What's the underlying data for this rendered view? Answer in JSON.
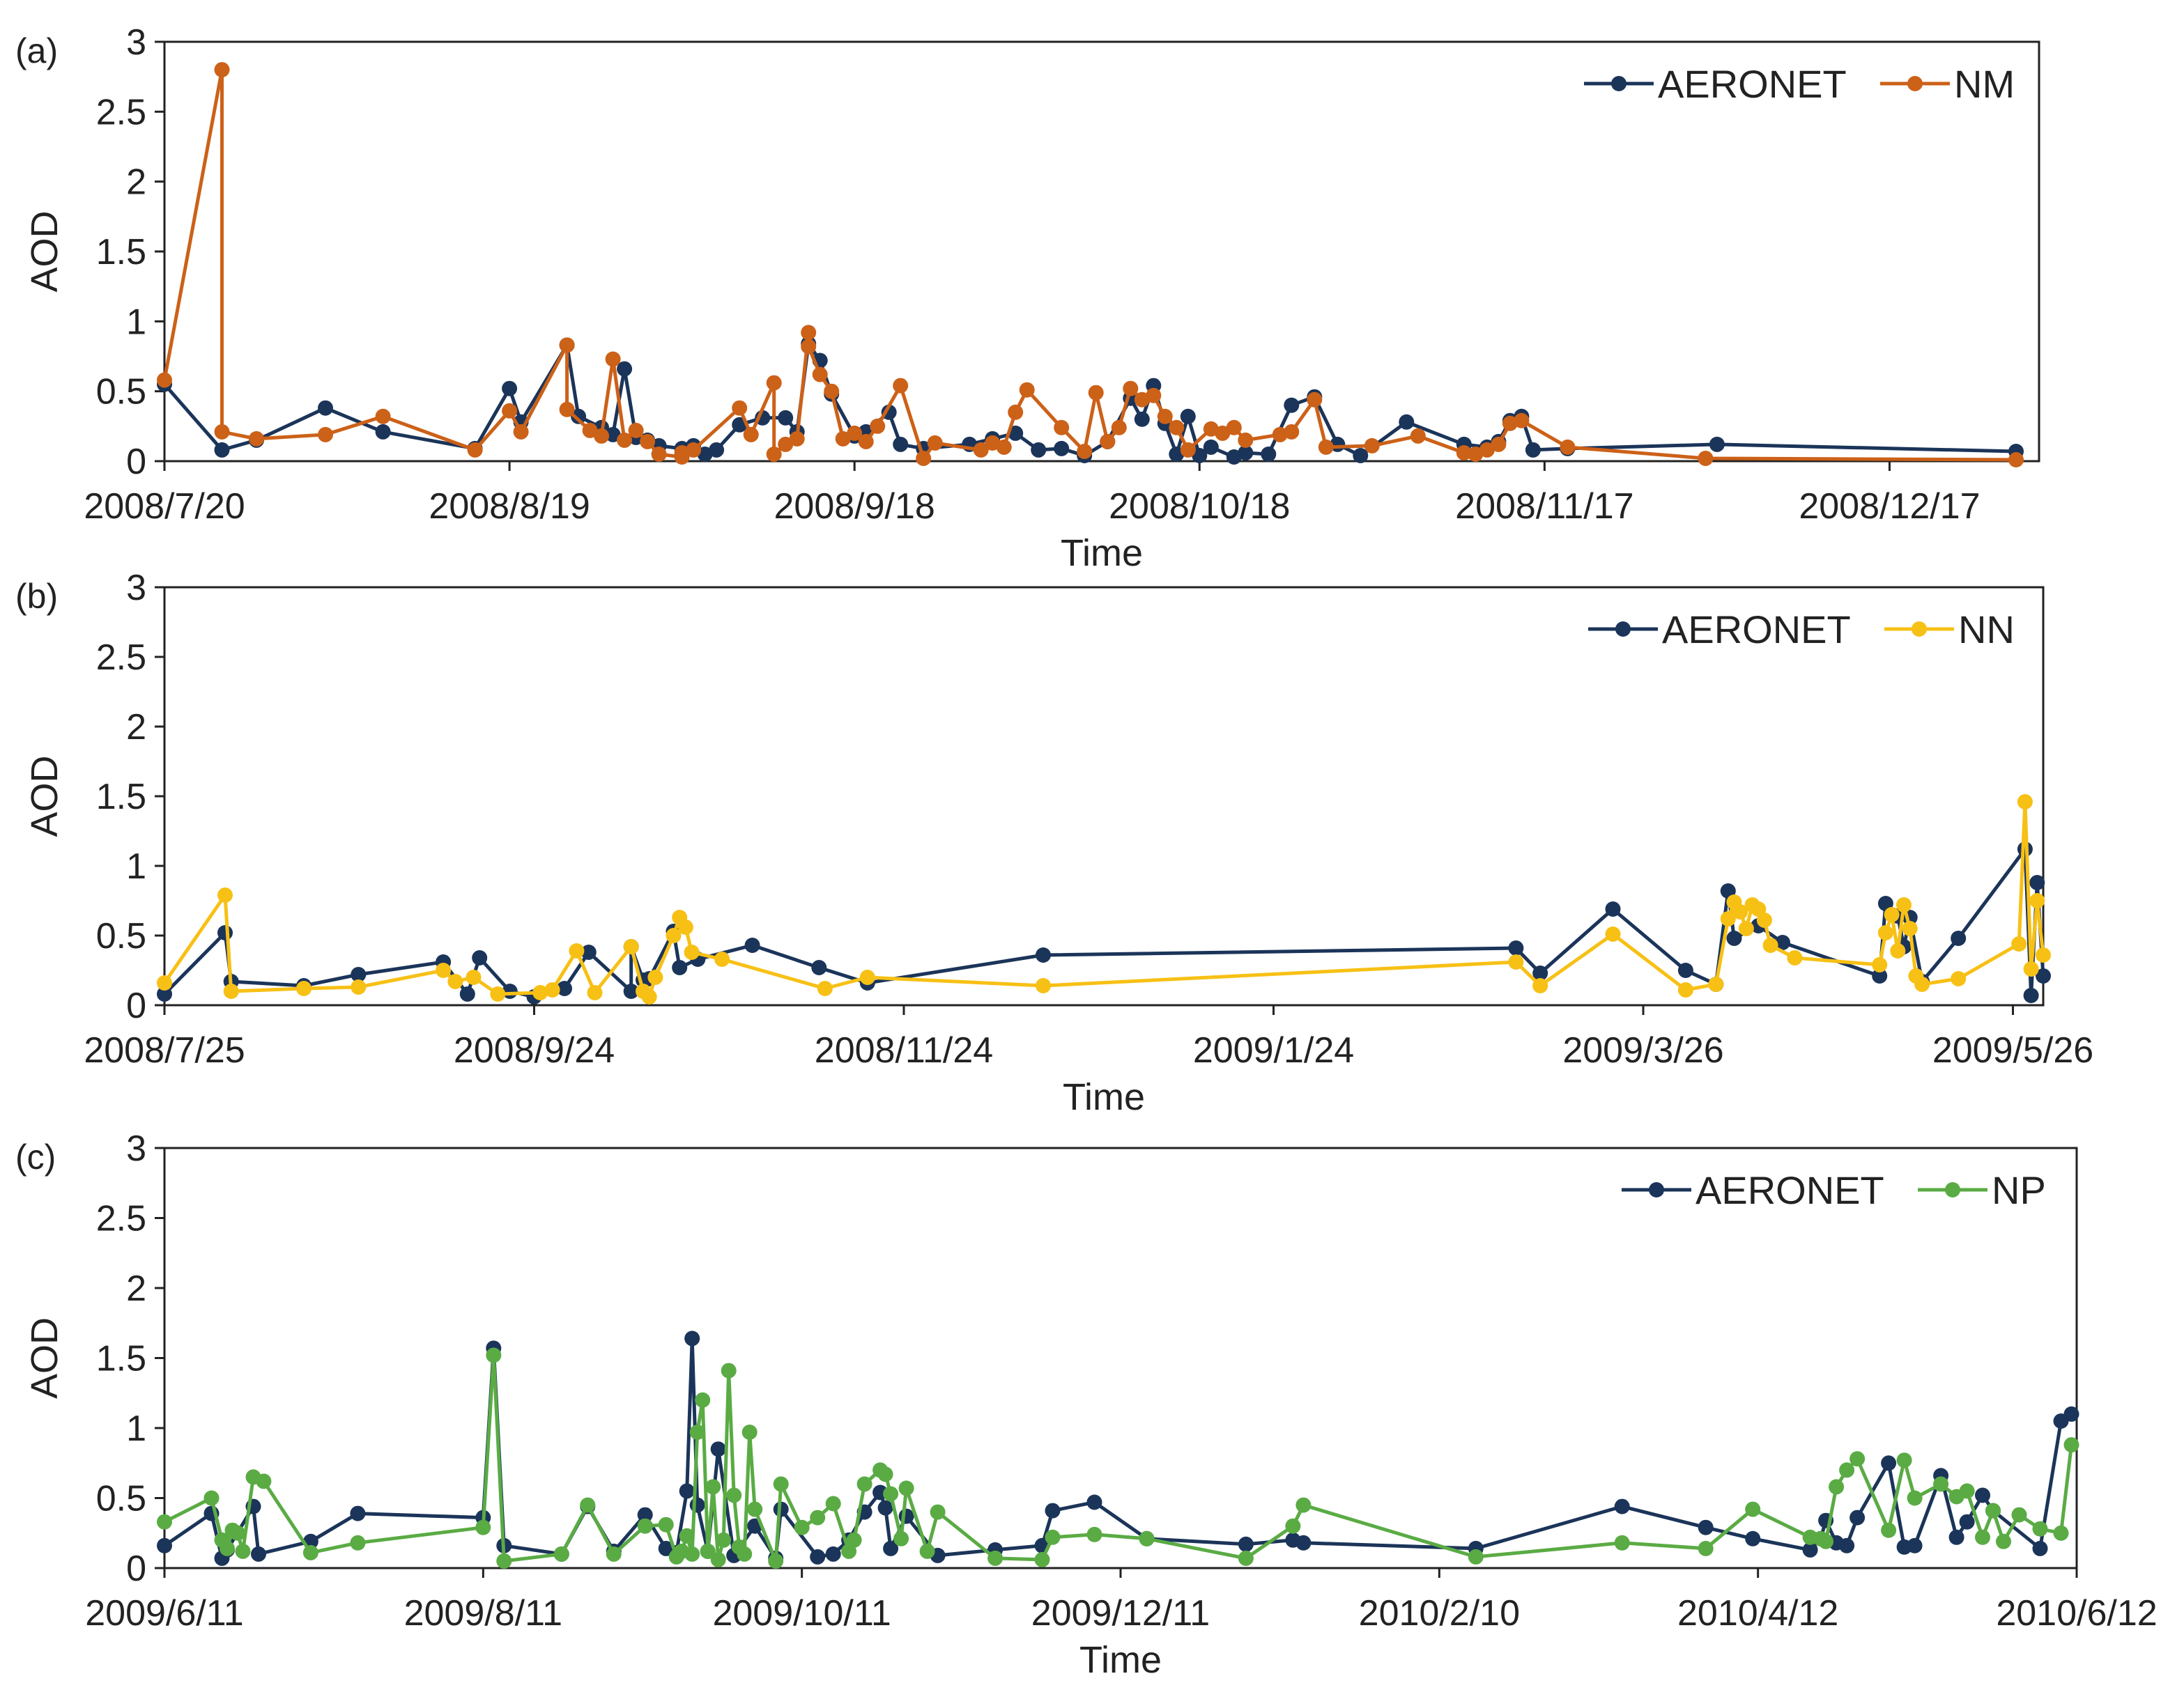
{
  "colors": {
    "aeronet": "#1b3459",
    "nm": "#cc6118",
    "nn": "#f7c015",
    "np": "#5aab44",
    "axis": "#222222"
  },
  "chart_data": [
    {
      "type": "line",
      "panel_label": "(a)",
      "xlabel": "Time",
      "ylabel": "AOD",
      "ylim": [
        0,
        3
      ],
      "yticks": [
        "0",
        "0.5",
        "1",
        "1.5",
        "2",
        "2.5",
        "3"
      ],
      "xlim_days": [
        0,
        163
      ],
      "xtick_labels": [
        "2008/7/20",
        "2008/8/19",
        "2008/9/18",
        "2008/10/18",
        "2008/11/17",
        "2008/12/17"
      ],
      "xtick_days": [
        0,
        30,
        60,
        90,
        120,
        150
      ],
      "legend_position": "top-right",
      "series": [
        {
          "name": "AERONET",
          "color_key": "aeronet",
          "x_days": [
            0,
            5,
            8,
            14,
            19,
            27,
            30,
            31,
            35,
            36,
            38,
            39,
            40,
            41,
            42,
            43,
            45,
            46,
            47,
            48,
            50,
            52,
            54,
            55,
            56,
            57,
            58,
            60,
            61,
            63,
            64,
            66,
            70,
            72,
            74,
            76,
            78,
            80,
            82,
            84,
            85,
            86,
            87,
            88,
            89,
            90,
            91,
            93,
            94,
            96,
            98,
            100,
            102,
            104,
            108,
            113,
            115,
            116,
            117,
            118,
            119,
            122,
            135,
            161
          ],
          "values": [
            0.55,
            0.08,
            0.15,
            0.38,
            0.21,
            0.09,
            0.52,
            0.28,
            0.83,
            0.32,
            0.24,
            0.19,
            0.66,
            0.17,
            0.15,
            0.11,
            0.09,
            0.11,
            0.05,
            0.08,
            0.26,
            0.31,
            0.31,
            0.21,
            0.84,
            0.72,
            0.48,
            0.18,
            0.21,
            0.35,
            0.12,
            0.09,
            0.12,
            0.16,
            0.2,
            0.08,
            0.09,
            0.04,
            0.14,
            0.45,
            0.3,
            0.54,
            0.27,
            0.05,
            0.32,
            0.04,
            0.1,
            0.03,
            0.06,
            0.05,
            0.4,
            0.46,
            0.12,
            0.04,
            0.28,
            0.12,
            0.1,
            0.14,
            0.29,
            0.32,
            0.08,
            0.09,
            0.12,
            0.07
          ]
        },
        {
          "name": "NM",
          "color_key": "nm",
          "x_days": [
            0,
            5,
            5,
            8,
            14,
            19,
            27,
            30,
            31,
            35,
            35,
            37,
            38,
            39,
            40,
            41,
            42,
            43,
            45,
            45,
            46,
            50,
            51,
            53,
            53,
            54,
            55,
            56,
            56,
            57,
            58,
            59,
            60,
            61,
            62,
            64,
            66,
            67,
            71,
            72,
            73,
            74,
            75,
            78,
            80,
            81,
            82,
            83,
            84,
            85,
            86,
            87,
            88,
            89,
            91,
            92,
            93,
            94,
            97,
            98,
            100,
            101,
            105,
            109,
            113,
            114,
            115,
            116,
            117,
            118,
            122,
            134,
            161
          ],
          "values": [
            0.58,
            2.8,
            0.21,
            0.16,
            0.19,
            0.32,
            0.08,
            0.36,
            0.21,
            0.83,
            0.37,
            0.22,
            0.18,
            0.73,
            0.15,
            0.22,
            0.14,
            0.05,
            0.03,
            0.06,
            0.08,
            0.38,
            0.19,
            0.56,
            0.05,
            0.12,
            0.16,
            0.92,
            0.82,
            0.62,
            0.5,
            0.16,
            0.2,
            0.14,
            0.25,
            0.54,
            0.02,
            0.13,
            0.08,
            0.13,
            0.1,
            0.35,
            0.51,
            0.24,
            0.07,
            0.49,
            0.14,
            0.24,
            0.52,
            0.44,
            0.47,
            0.32,
            0.24,
            0.08,
            0.23,
            0.2,
            0.24,
            0.15,
            0.19,
            0.21,
            0.44,
            0.1,
            0.11,
            0.18,
            0.06,
            0.05,
            0.08,
            0.12,
            0.27,
            0.29,
            0.1,
            0.02,
            0.01
          ]
        }
      ]
    },
    {
      "type": "line",
      "panel_label": "(b)",
      "xlabel": "Time",
      "ylabel": "AOD",
      "ylim": [
        0,
        3
      ],
      "yticks": [
        "0",
        "0.5",
        "1",
        "1.5",
        "2",
        "2.5",
        "3"
      ],
      "xlim_days": [
        0,
        310
      ],
      "xtick_labels": [
        "2008/7/25",
        "2008/9/24",
        "2008/11/24",
        "2009/1/24",
        "2009/3/26",
        "2009/5/26"
      ],
      "xtick_days": [
        0,
        61,
        122,
        183,
        244,
        305
      ],
      "legend_position": "top-right",
      "series": [
        {
          "name": "AERONET",
          "color_key": "aeronet",
          "x_days": [
            0,
            10,
            11,
            23,
            32,
            46,
            50,
            52,
            57,
            61,
            66,
            70,
            77,
            77,
            79,
            80,
            84,
            85,
            88,
            97,
            108,
            116,
            145,
            223,
            227,
            239,
            251,
            256,
            258,
            259,
            263,
            267,
            283,
            284,
            286,
            287,
            288,
            290,
            296,
            307,
            308,
            309,
            310
          ],
          "values": [
            0.08,
            0.52,
            0.17,
            0.14,
            0.22,
            0.31,
            0.08,
            0.34,
            0.1,
            0.06,
            0.12,
            0.38,
            0.1,
            0.42,
            0.18,
            0.19,
            0.53,
            0.27,
            0.33,
            0.43,
            0.27,
            0.16,
            0.36,
            0.41,
            0.23,
            0.69,
            0.25,
            0.15,
            0.82,
            0.48,
            0.57,
            0.45,
            0.21,
            0.73,
            0.64,
            0.42,
            0.63,
            0.17,
            0.48,
            1.12,
            0.07,
            0.88,
            0.21
          ]
        },
        {
          "name": "NN",
          "color_key": "nn",
          "x_days": [
            0,
            10,
            11,
            23,
            32,
            46,
            48,
            51,
            55,
            62,
            64,
            68,
            71,
            77,
            79,
            80,
            81,
            84,
            85,
            86,
            87,
            92,
            109,
            116,
            145,
            223,
            227,
            239,
            251,
            256,
            258,
            259,
            260,
            261,
            262,
            263,
            264,
            265,
            269,
            283,
            284,
            285,
            286,
            287,
            288,
            289,
            290,
            296,
            306,
            307,
            308,
            309,
            310
          ],
          "values": [
            0.16,
            0.79,
            0.1,
            0.12,
            0.13,
            0.25,
            0.17,
            0.2,
            0.08,
            0.09,
            0.11,
            0.39,
            0.09,
            0.42,
            0.1,
            0.06,
            0.2,
            0.5,
            0.63,
            0.56,
            0.38,
            0.33,
            0.12,
            0.2,
            0.14,
            0.31,
            0.14,
            0.51,
            0.11,
            0.15,
            0.62,
            0.74,
            0.67,
            0.55,
            0.72,
            0.69,
            0.61,
            0.43,
            0.34,
            0.29,
            0.52,
            0.65,
            0.39,
            0.72,
            0.55,
            0.21,
            0.15,
            0.19,
            0.44,
            1.46,
            0.26,
            0.75,
            0.36
          ]
        }
      ]
    },
    {
      "type": "line",
      "panel_label": "(c)",
      "xlabel": "Time",
      "ylabel": "AOD",
      "ylim": [
        0,
        3
      ],
      "yticks": [
        "0",
        "0.5",
        "1",
        "1.5",
        "2",
        "2.5",
        "3"
      ],
      "xlim_days": [
        0,
        366
      ],
      "xtick_labels": [
        "2009/6/11",
        "2009/8/11",
        "2009/10/11",
        "2009/12/11",
        "2010/2/10",
        "2010/4/12",
        "2010/6/12"
      ],
      "xtick_days": [
        0,
        61,
        122,
        183,
        244,
        305,
        366
      ],
      "legend_position": "top-right",
      "series": [
        {
          "name": "AERONET",
          "color_key": "aeronet",
          "x_days": [
            0,
            9,
            11,
            12,
            17,
            18,
            28,
            37,
            61,
            63,
            65,
            76,
            81,
            86,
            92,
            96,
            98,
            100,
            101,
            102,
            104,
            106,
            109,
            113,
            117,
            118,
            125,
            128,
            131,
            134,
            137,
            138,
            139,
            142,
            148,
            159,
            168,
            170,
            178,
            188,
            207,
            216,
            218,
            251,
            279,
            295,
            304,
            315,
            317,
            318,
            320,
            322,
            324,
            330,
            333,
            335,
            340,
            343,
            345,
            348,
            350,
            359,
            363,
            365
          ],
          "values": [
            0.16,
            0.39,
            0.07,
            0.13,
            0.44,
            0.1,
            0.19,
            0.39,
            0.36,
            1.57,
            0.16,
            0.1,
            0.44,
            0.12,
            0.38,
            0.14,
            0.11,
            0.55,
            1.64,
            0.45,
            0.12,
            0.85,
            0.09,
            0.3,
            0.07,
            0.42,
            0.08,
            0.1,
            0.2,
            0.4,
            0.54,
            0.43,
            0.14,
            0.37,
            0.09,
            0.13,
            0.16,
            0.41,
            0.47,
            0.21,
            0.17,
            0.2,
            0.18,
            0.14,
            0.44,
            0.29,
            0.21,
            0.13,
            0.21,
            0.34,
            0.18,
            0.16,
            0.36,
            0.75,
            0.15,
            0.16,
            0.66,
            0.22,
            0.33,
            0.52,
            0.41,
            0.14,
            1.05,
            1.1
          ]
        },
        {
          "name": "NP",
          "color_key": "np",
          "x_days": [
            0,
            9,
            11,
            12,
            13,
            14,
            15,
            17,
            19,
            28,
            37,
            61,
            63,
            65,
            76,
            81,
            86,
            92,
            96,
            98,
            99,
            100,
            101,
            102,
            103,
            104,
            105,
            106,
            107,
            108,
            109,
            110,
            111,
            112,
            113,
            117,
            118,
            122,
            125,
            128,
            131,
            132,
            134,
            137,
            138,
            139,
            141,
            142,
            146,
            148,
            159,
            168,
            170,
            178,
            188,
            207,
            216,
            218,
            251,
            279,
            295,
            304,
            315,
            317,
            318,
            320,
            322,
            324,
            330,
            333,
            335,
            340,
            343,
            345,
            348,
            350,
            352,
            355,
            359,
            363,
            365
          ],
          "values": [
            0.33,
            0.5,
            0.2,
            0.14,
            0.27,
            0.25,
            0.12,
            0.65,
            0.62,
            0.11,
            0.18,
            0.29,
            1.52,
            0.05,
            0.1,
            0.45,
            0.1,
            0.3,
            0.31,
            0.08,
            0.12,
            0.23,
            0.1,
            0.97,
            1.2,
            0.12,
            0.58,
            0.06,
            0.2,
            1.41,
            0.52,
            0.15,
            0.1,
            0.97,
            0.42,
            0.05,
            0.6,
            0.29,
            0.36,
            0.46,
            0.12,
            0.2,
            0.6,
            0.7,
            0.67,
            0.53,
            0.21,
            0.57,
            0.12,
            0.4,
            0.07,
            0.06,
            0.22,
            0.24,
            0.21,
            0.07,
            0.3,
            0.45,
            0.08,
            0.18,
            0.14,
            0.42,
            0.22,
            0.21,
            0.19,
            0.58,
            0.7,
            0.78,
            0.27,
            0.77,
            0.5,
            0.6,
            0.51,
            0.55,
            0.22,
            0.41,
            0.19,
            0.38,
            0.28,
            0.25,
            0.88
          ]
        }
      ]
    }
  ]
}
